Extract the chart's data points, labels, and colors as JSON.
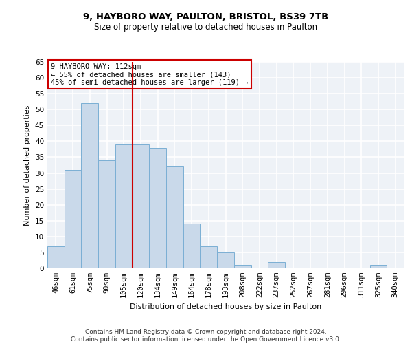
{
  "title1": "9, HAYBORO WAY, PAULTON, BRISTOL, BS39 7TB",
  "title2": "Size of property relative to detached houses in Paulton",
  "xlabel": "Distribution of detached houses by size in Paulton",
  "ylabel": "Number of detached properties",
  "categories": [
    "46sqm",
    "61sqm",
    "75sqm",
    "90sqm",
    "105sqm",
    "120sqm",
    "134sqm",
    "149sqm",
    "164sqm",
    "178sqm",
    "193sqm",
    "208sqm",
    "222sqm",
    "237sqm",
    "252sqm",
    "267sqm",
    "281sqm",
    "296sqm",
    "311sqm",
    "325sqm",
    "340sqm"
  ],
  "values": [
    7,
    31,
    52,
    34,
    39,
    39,
    38,
    32,
    14,
    7,
    5,
    1,
    0,
    2,
    0,
    0,
    0,
    0,
    0,
    1,
    0
  ],
  "bar_color": "#c9d9ea",
  "bar_edge_color": "#7bafd4",
  "background_color": "#eef2f7",
  "grid_color": "#ffffff",
  "vline_x": 5.0,
  "vline_color": "#cc0000",
  "annotation_text": "9 HAYBORO WAY: 112sqm\n← 55% of detached houses are smaller (143)\n45% of semi-detached houses are larger (119) →",
  "annotation_box_color": "#ffffff",
  "annotation_box_edge_color": "#cc0000",
  "ylim": [
    0,
    65
  ],
  "yticks": [
    0,
    5,
    10,
    15,
    20,
    25,
    30,
    35,
    40,
    45,
    50,
    55,
    60,
    65
  ],
  "footer_line1": "Contains HM Land Registry data © Crown copyright and database right 2024.",
  "footer_line2": "Contains public sector information licensed under the Open Government Licence v3.0.",
  "title1_fontsize": 9.5,
  "title2_fontsize": 8.5,
  "xlabel_fontsize": 8,
  "ylabel_fontsize": 8,
  "tick_fontsize": 7.5,
  "annotation_fontsize": 7.5,
  "footer_fontsize": 6.5
}
